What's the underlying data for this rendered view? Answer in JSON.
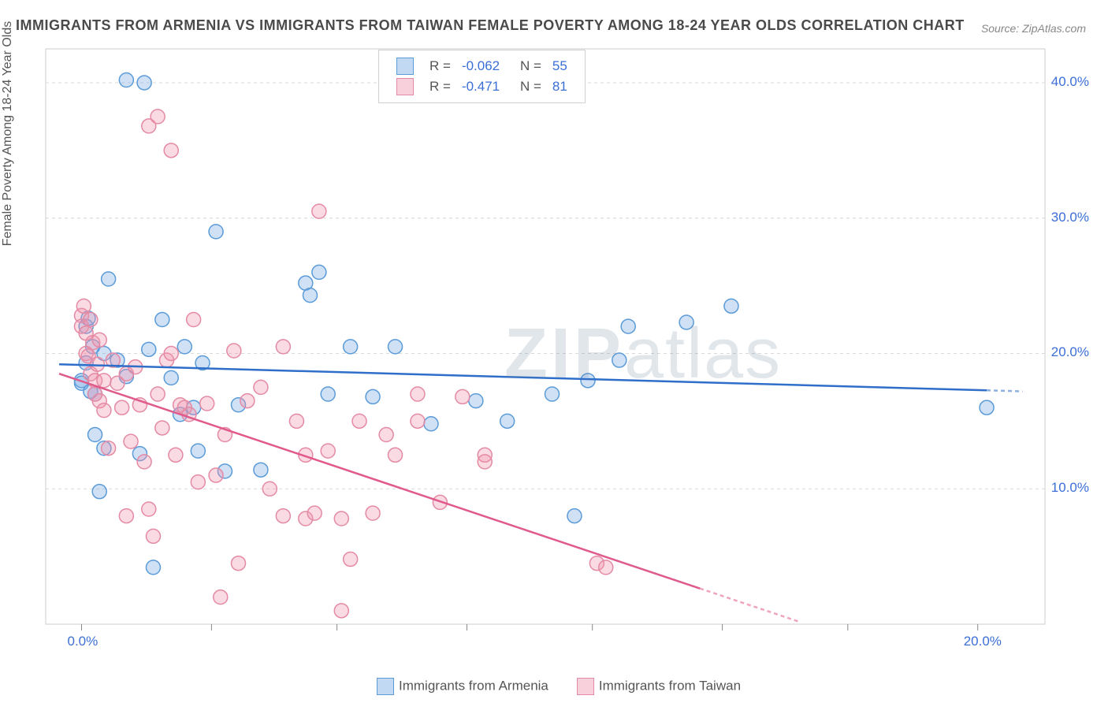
{
  "title": "IMMIGRANTS FROM ARMENIA VS IMMIGRANTS FROM TAIWAN FEMALE POVERTY AMONG 18-24 YEAR OLDS CORRELATION CHART",
  "source": "Source: ZipAtlas.com",
  "ylabel": "Female Poverty Among 18-24 Year Olds",
  "watermark": {
    "bold": "ZIP",
    "light": "atlas"
  },
  "chart": {
    "type": "scatter",
    "background_color": "#ffffff",
    "grid_color": "#d8d8d8",
    "grid_dash": "4,4",
    "border_color": "#cccccc",
    "xlim": [
      -0.8,
      21.5
    ],
    "ylim": [
      0,
      42.5
    ],
    "xticks": [
      0,
      20
    ],
    "xtick_labels": [
      "0.0%",
      "20.0%"
    ],
    "xtick_color": "#3b6fd6",
    "yticks": [
      10,
      20,
      30,
      40
    ],
    "ytick_labels": [
      "10.0%",
      "20.0%",
      "30.0%",
      "40.0%"
    ],
    "ytick_color": "#3b6fd6",
    "x_minor_ticks": [
      2.9,
      5.7,
      8.6,
      11.4,
      14.3,
      17.1
    ],
    "marker_radius": 9,
    "marker_stroke_width": 1.5,
    "trend_line_width": 2.5,
    "trend_dash_tail": "5,4"
  },
  "series": [
    {
      "name": "Immigrants from Armenia",
      "fill": "rgba(120,170,230,0.35)",
      "stroke": "#5a9bd8",
      "line_color": "#2f6fc9",
      "R": "-0.062",
      "N": "55",
      "trend": {
        "x1": -0.5,
        "y1": 19.2,
        "x2": 21.0,
        "y2": 17.2,
        "x_solid_end": 20.2
      },
      "points": [
        [
          0.0,
          18.0
        ],
        [
          0.0,
          17.8
        ],
        [
          0.1,
          19.3
        ],
        [
          0.1,
          22.0
        ],
        [
          0.15,
          22.6
        ],
        [
          0.2,
          17.2
        ],
        [
          0.25,
          20.5
        ],
        [
          0.3,
          17.0
        ],
        [
          0.3,
          14.0
        ],
        [
          0.4,
          9.8
        ],
        [
          0.5,
          20.0
        ],
        [
          0.5,
          13.0
        ],
        [
          0.6,
          25.5
        ],
        [
          0.8,
          19.5
        ],
        [
          1.0,
          40.2
        ],
        [
          1.0,
          18.3
        ],
        [
          1.3,
          12.6
        ],
        [
          1.4,
          40.0
        ],
        [
          1.5,
          20.3
        ],
        [
          1.6,
          4.2
        ],
        [
          1.8,
          22.5
        ],
        [
          2.0,
          18.2
        ],
        [
          2.2,
          15.5
        ],
        [
          2.3,
          20.5
        ],
        [
          2.5,
          16.0
        ],
        [
          2.6,
          12.8
        ],
        [
          2.7,
          19.3
        ],
        [
          3.0,
          29.0
        ],
        [
          3.2,
          11.3
        ],
        [
          3.5,
          16.2
        ],
        [
          4.0,
          11.4
        ],
        [
          5.0,
          25.2
        ],
        [
          5.1,
          24.3
        ],
        [
          5.3,
          26.0
        ],
        [
          5.5,
          17.0
        ],
        [
          6.0,
          20.5
        ],
        [
          6.5,
          16.8
        ],
        [
          7.0,
          20.5
        ],
        [
          7.8,
          14.8
        ],
        [
          8.8,
          16.5
        ],
        [
          9.5,
          15.0
        ],
        [
          10.5,
          17.0
        ],
        [
          11.0,
          8.0
        ],
        [
          11.3,
          18.0
        ],
        [
          12.0,
          19.5
        ],
        [
          12.2,
          22.0
        ],
        [
          13.5,
          22.3
        ],
        [
          14.5,
          23.5
        ],
        [
          20.2,
          16.0
        ]
      ]
    },
    {
      "name": "Immigrants from Taiwan",
      "fill": "rgba(240,150,175,0.35)",
      "stroke": "#e48aa4",
      "line_color": "#e05a8b",
      "R": "-0.471",
      "N": "81",
      "trend": {
        "x1": -0.5,
        "y1": 18.5,
        "x2": 16.0,
        "y2": 0.2,
        "x_solid_end": 13.8
      },
      "points": [
        [
          0.0,
          22.8
        ],
        [
          0.0,
          22.0
        ],
        [
          0.05,
          23.5
        ],
        [
          0.1,
          21.5
        ],
        [
          0.1,
          20.0
        ],
        [
          0.15,
          19.8
        ],
        [
          0.2,
          22.5
        ],
        [
          0.2,
          18.5
        ],
        [
          0.25,
          20.8
        ],
        [
          0.3,
          18.0
        ],
        [
          0.3,
          17.0
        ],
        [
          0.35,
          19.2
        ],
        [
          0.4,
          16.5
        ],
        [
          0.4,
          21.0
        ],
        [
          0.5,
          15.8
        ],
        [
          0.5,
          18.0
        ],
        [
          0.6,
          13.0
        ],
        [
          0.7,
          19.5
        ],
        [
          0.8,
          17.8
        ],
        [
          0.9,
          16.0
        ],
        [
          1.0,
          18.5
        ],
        [
          1.0,
          8.0
        ],
        [
          1.1,
          13.5
        ],
        [
          1.2,
          19.0
        ],
        [
          1.3,
          16.2
        ],
        [
          1.4,
          12.0
        ],
        [
          1.5,
          8.5
        ],
        [
          1.5,
          36.8
        ],
        [
          1.6,
          6.5
        ],
        [
          1.7,
          17.0
        ],
        [
          1.7,
          37.5
        ],
        [
          1.8,
          14.5
        ],
        [
          1.9,
          19.5
        ],
        [
          2.0,
          20.0
        ],
        [
          2.0,
          35.0
        ],
        [
          2.1,
          12.5
        ],
        [
          2.2,
          16.2
        ],
        [
          2.3,
          16.0
        ],
        [
          2.4,
          15.5
        ],
        [
          2.5,
          22.5
        ],
        [
          2.6,
          10.5
        ],
        [
          2.8,
          16.3
        ],
        [
          3.0,
          11.0
        ],
        [
          3.1,
          2.0
        ],
        [
          3.2,
          14.0
        ],
        [
          3.4,
          20.2
        ],
        [
          3.5,
          4.5
        ],
        [
          3.7,
          16.5
        ],
        [
          4.0,
          17.5
        ],
        [
          4.2,
          10.0
        ],
        [
          4.5,
          8.0
        ],
        [
          4.5,
          20.5
        ],
        [
          4.8,
          15.0
        ],
        [
          5.0,
          7.8
        ],
        [
          5.0,
          12.5
        ],
        [
          5.2,
          8.2
        ],
        [
          5.3,
          30.5
        ],
        [
          5.5,
          12.8
        ],
        [
          5.8,
          7.8
        ],
        [
          5.8,
          1.0
        ],
        [
          6.0,
          4.8
        ],
        [
          6.2,
          15.0
        ],
        [
          6.5,
          8.2
        ],
        [
          6.8,
          14.0
        ],
        [
          7.0,
          12.5
        ],
        [
          7.5,
          15.0
        ],
        [
          7.5,
          17.0
        ],
        [
          8.0,
          9.0
        ],
        [
          8.5,
          16.8
        ],
        [
          9.0,
          12.5
        ],
        [
          9.0,
          12.0
        ],
        [
          11.5,
          4.5
        ],
        [
          11.7,
          4.2
        ]
      ]
    }
  ],
  "legend_top": {
    "rows": [
      {
        "sq_fill": "rgba(120,170,230,0.45)",
        "sq_stroke": "#5a9bd8",
        "R_label": "R =",
        "R": "-0.062",
        "N_label": "N =",
        "N": "55",
        "color": "#3b6fd6"
      },
      {
        "sq_fill": "rgba(240,150,175,0.45)",
        "sq_stroke": "#e48aa4",
        "R_label": "R =",
        "R": "-0.471",
        "N_label": "N =",
        "N": "81",
        "color": "#3b6fd6"
      }
    ]
  },
  "legend_bottom": {
    "items": [
      {
        "sq_fill": "rgba(120,170,230,0.45)",
        "sq_stroke": "#5a9bd8",
        "label": "Immigrants from Armenia"
      },
      {
        "sq_fill": "rgba(240,150,175,0.45)",
        "sq_stroke": "#e48aa4",
        "label": "Immigrants from Taiwan"
      }
    ]
  }
}
